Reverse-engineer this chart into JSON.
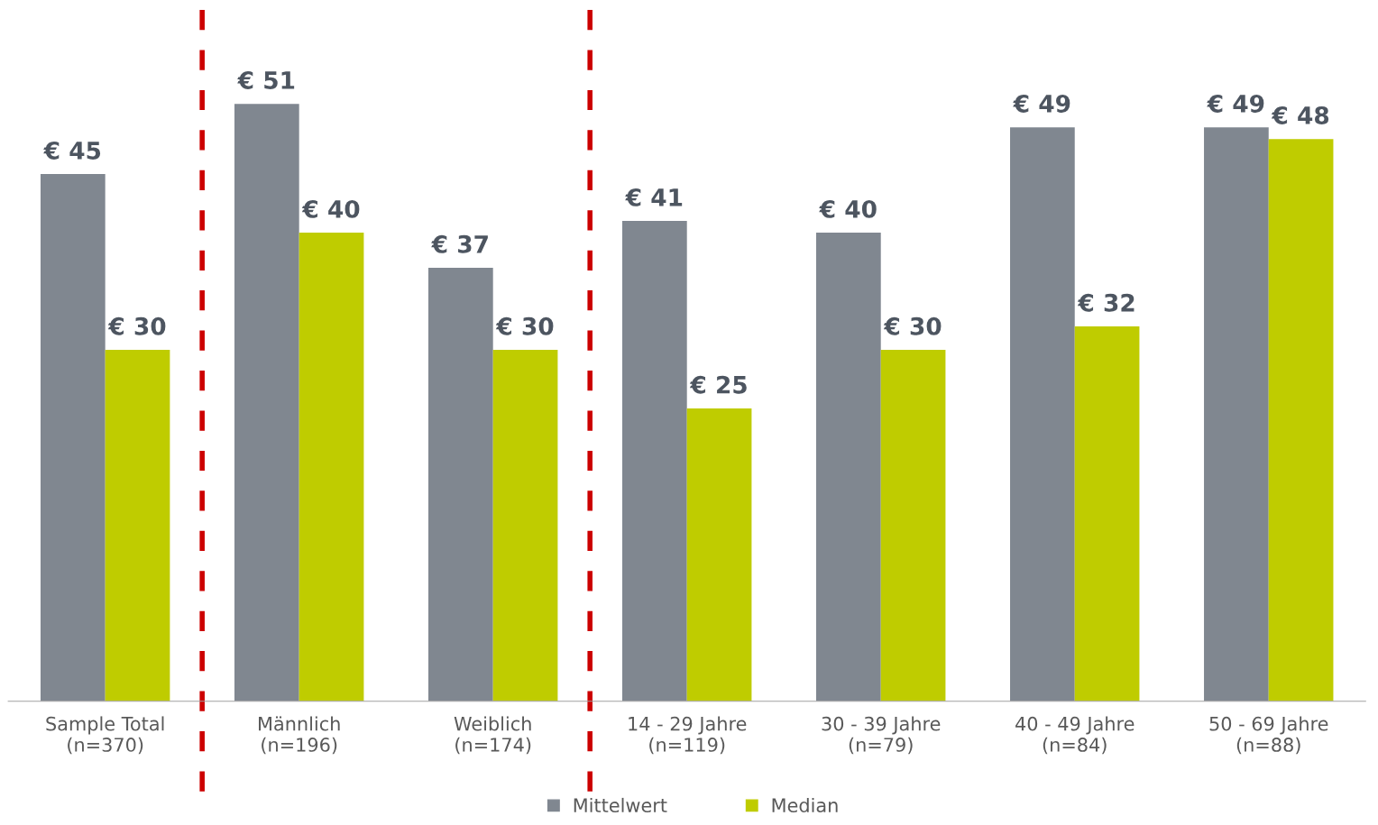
{
  "chart_data": {
    "type": "bar",
    "categories": [
      "Sample Total\n(n=370)",
      "Männlich\n(n=196)",
      "Weiblich\n(n=174)",
      "14 - 29 Jahre\n(n=119)",
      "30 - 39 Jahre\n(n=79)",
      "40 - 49 Jahre\n(n=84)",
      "50 - 69 Jahre\n(n=88)"
    ],
    "series": [
      {
        "name": "Mittelwert",
        "color": "#808790",
        "values": [
          45,
          51,
          37,
          41,
          40,
          49,
          49
        ],
        "value_labels": [
          "€ 45",
          "€ 51",
          "€ 37",
          "€ 41",
          "€ 40",
          "€ 49",
          "€ 49"
        ]
      },
      {
        "name": "Median",
        "color": "#bfcc00",
        "values": [
          30,
          40,
          30,
          25,
          30,
          32,
          48
        ],
        "value_labels": [
          "€ 30",
          "€ 40",
          "€ 30",
          "€ 25",
          "€ 30",
          "€ 32",
          "€ 48"
        ]
      }
    ],
    "grid": false,
    "legend": "bottom"
  }
}
